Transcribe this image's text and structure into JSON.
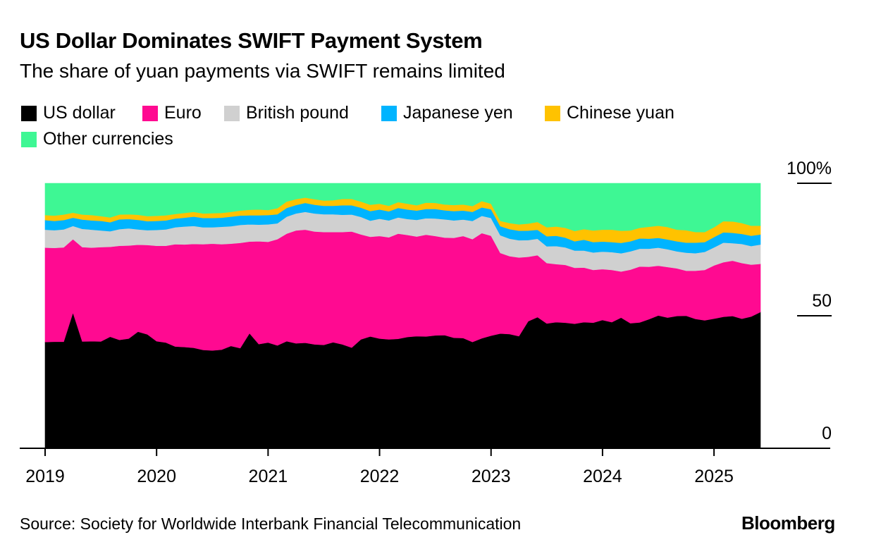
{
  "title": "US Dollar Dominates SWIFT Payment System",
  "subtitle": "The share of yuan payments via SWIFT remains limited",
  "source": "Source: Society for Worldwide Interbank Financial Telecommunication",
  "brand": "Bloomberg",
  "chart_data": {
    "type": "area",
    "stacked": true,
    "title": "US Dollar Dominates SWIFT Payment System",
    "subtitle": "The share of yuan payments via SWIFT remains limited",
    "xlabel": "",
    "ylabel": "",
    "ylim": [
      0,
      100
    ],
    "yticks": [
      0,
      50,
      100
    ],
    "ytick_labels": [
      "0",
      "50",
      "100%"
    ],
    "xticks": [
      "2019",
      "2020",
      "2021",
      "2022",
      "2023",
      "2024",
      "2025"
    ],
    "x_start": "2019-01",
    "x_end": "2025-06",
    "grid": false,
    "legend_position": "top-left",
    "series": [
      {
        "name": "US dollar",
        "color": "#000000",
        "values": [
          40.1,
          40.2,
          40.2,
          51.2,
          40.3,
          40.4,
          40.3,
          42.1,
          40.9,
          41.4,
          44.0,
          43.0,
          40.4,
          39.9,
          38.4,
          38.2,
          37.9,
          37.1,
          36.9,
          37.2,
          38.6,
          37.8,
          43.4,
          39.3,
          39.9,
          38.8,
          40.4,
          39.6,
          39.8,
          39.2,
          39.0,
          40.0,
          39.2,
          38.0,
          41.1,
          42.2,
          41.4,
          41.1,
          41.3,
          42.0,
          42.3,
          42.2,
          42.6,
          42.7,
          41.7,
          41.6,
          40.1,
          41.5,
          42.5,
          43.3,
          43.1,
          42.3,
          47.0,
          48.5,
          47.1,
          47.6,
          47.4,
          47.0,
          47.6,
          47.4,
          48.4,
          47.6,
          49.3,
          47.2,
          47.5,
          48.7,
          50.1,
          49.3,
          49.9,
          50.0,
          48.8,
          48.3,
          48.9,
          49.6,
          49.9,
          48.9,
          49.7,
          51.4
        ]
      },
      {
        "name": "Euro",
        "color": "#ff0a91",
        "values": [
          35.6,
          35.4,
          35.6,
          27.7,
          35.6,
          35.3,
          35.6,
          33.9,
          35.5,
          35.1,
          32.8,
          33.7,
          36.0,
          36.5,
          38.6,
          38.7,
          39.2,
          39.9,
          40.3,
          39.8,
          38.6,
          39.7,
          34.6,
          38.8,
          38.0,
          40.1,
          40.6,
          42.6,
          42.7,
          42.6,
          42.6,
          41.6,
          42.4,
          43.8,
          39.6,
          37.6,
          38.7,
          38.5,
          39.7,
          38.5,
          37.6,
          38.4,
          37.5,
          36.8,
          37.7,
          38.5,
          38.8,
          39.7,
          37.7,
          30.4,
          29.4,
          29.7,
          23.8,
          22.9,
          22.8,
          21.9,
          21.8,
          21.1,
          20.6,
          19.9,
          19.2,
          19.7,
          17.4,
          20.2,
          21.1,
          19.8,
          18.8,
          19.1,
          18.0,
          17.0,
          18.2,
          19.0,
          20.1,
          20.6,
          20.9,
          21.0,
          19.6,
          18.2
        ]
      },
      {
        "name": "British pound",
        "color": "#d0d0d0",
        "values": [
          6.8,
          6.7,
          6.8,
          5.0,
          6.9,
          6.8,
          6.3,
          5.9,
          6.3,
          6.5,
          5.8,
          5.6,
          6.0,
          6.2,
          6.4,
          6.8,
          6.8,
          6.4,
          6.2,
          6.6,
          6.6,
          6.8,
          6.5,
          6.3,
          6.6,
          6.0,
          6.4,
          6.4,
          6.7,
          6.8,
          6.7,
          6.7,
          6.5,
          6.4,
          6.6,
          6.1,
          6.5,
          6.4,
          6.1,
          6.0,
          6.3,
          6.2,
          6.6,
          6.9,
          6.6,
          6.2,
          6.9,
          6.5,
          6.7,
          6.7,
          6.6,
          6.5,
          6.2,
          6.1,
          6.3,
          6.8,
          6.6,
          6.5,
          6.4,
          6.6,
          6.6,
          6.7,
          6.9,
          6.9,
          6.7,
          6.8,
          6.8,
          6.7,
          6.4,
          6.8,
          6.6,
          6.8,
          6.8,
          7.4,
          6.6,
          7.2,
          7.0,
          7.3
        ]
      },
      {
        "name": "Japanese yen",
        "color": "#00b4ff",
        "values": [
          3.6,
          3.5,
          3.5,
          3.1,
          3.5,
          3.5,
          3.6,
          3.4,
          3.7,
          3.5,
          3.6,
          3.4,
          3.4,
          3.4,
          3.3,
          3.3,
          3.5,
          3.5,
          3.5,
          3.4,
          3.6,
          3.5,
          3.4,
          3.5,
          3.5,
          3.4,
          3.3,
          3.2,
          3.4,
          3.3,
          3.2,
          3.2,
          3.6,
          3.5,
          3.5,
          3.6,
          3.5,
          3.4,
          3.6,
          3.6,
          3.5,
          3.5,
          3.6,
          3.4,
          3.5,
          3.4,
          3.4,
          3.2,
          3.3,
          3.4,
          3.6,
          3.6,
          3.5,
          3.3,
          3.8,
          3.9,
          3.7,
          3.5,
          4.1,
          3.9,
          3.8,
          3.8,
          3.9,
          3.8,
          3.9,
          3.8,
          3.7,
          3.7,
          3.8,
          3.8,
          4.0,
          3.7,
          3.9,
          3.9,
          3.9,
          3.8,
          3.9,
          3.8
        ]
      },
      {
        "name": "Chinese yuan",
        "color": "#ffc200",
        "values": [
          1.9,
          2.0,
          2.1,
          1.9,
          1.9,
          2.0,
          1.8,
          1.8,
          1.8,
          1.8,
          1.9,
          1.9,
          1.9,
          1.9,
          1.7,
          1.8,
          1.8,
          1.7,
          1.8,
          1.8,
          1.8,
          1.9,
          2.1,
          2.2,
          1.9,
          2.3,
          2.4,
          2.2,
          2.0,
          2.1,
          2.0,
          2.1,
          2.4,
          2.4,
          2.3,
          2.4,
          2.2,
          2.1,
          2.2,
          2.2,
          2.0,
          2.4,
          2.3,
          2.2,
          2.3,
          2.3,
          2.2,
          2.4,
          2.1,
          2.0,
          2.3,
          2.4,
          2.6,
          2.9,
          3.4,
          3.5,
          3.7,
          3.9,
          4.0,
          4.4,
          4.5,
          4.7,
          4.6,
          4.1,
          4.0,
          4.5,
          4.6,
          4.7,
          4.4,
          4.7,
          4.0,
          3.8,
          3.7,
          4.2,
          4.3,
          4.1,
          3.8,
          3.3
        ]
      },
      {
        "name": "Other currencies",
        "color": "#3ef794",
        "values": [
          12.0,
          12.2,
          11.8,
          11.1,
          11.8,
          12.0,
          12.4,
          12.9,
          11.8,
          11.7,
          11.9,
          12.4,
          12.3,
          12.1,
          11.6,
          11.2,
          10.8,
          11.4,
          11.3,
          11.2,
          10.8,
          10.3,
          10.0,
          9.9,
          10.1,
          9.4,
          6.9,
          6.0,
          5.4,
          6.0,
          6.5,
          6.4,
          5.9,
          5.9,
          6.9,
          8.1,
          7.7,
          8.5,
          7.1,
          7.7,
          8.3,
          7.3,
          7.4,
          8.0,
          8.2,
          8.0,
          8.6,
          6.7,
          7.7,
          14.2,
          15.0,
          15.5,
          14.9,
          14.3,
          16.6,
          16.3,
          16.8,
          18.0,
          17.3,
          17.8,
          17.5,
          17.5,
          17.9,
          17.8,
          16.8,
          16.4,
          16.0,
          16.5,
          17.5,
          17.7,
          18.4,
          18.4,
          16.6,
          14.3,
          14.4,
          15.0,
          16.0,
          16.0
        ]
      }
    ]
  }
}
